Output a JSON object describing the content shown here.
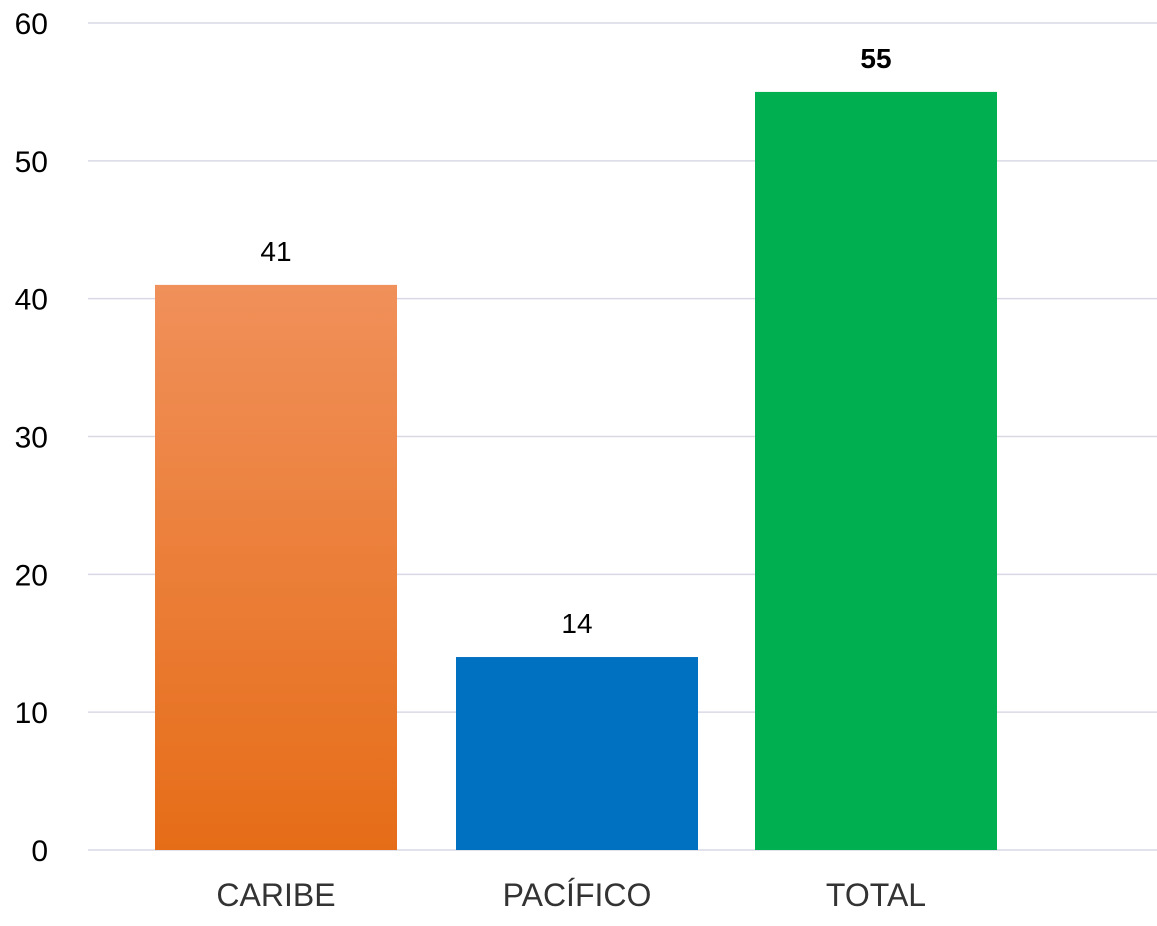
{
  "chart_data": {
    "type": "bar",
    "categories": [
      "CARIBE",
      "PACÍFICO",
      "TOTAL"
    ],
    "values": [
      41,
      14,
      55
    ],
    "data_labels": [
      "41",
      "14",
      "55"
    ],
    "data_label_bold": [
      false,
      false,
      true
    ],
    "colors": [
      "#ef7f2a",
      "#0070c0",
      "#00b050"
    ],
    "gradient_top": [
      "#f0905a",
      null,
      null
    ],
    "gradient_bottom": [
      "#e66d18",
      null,
      null
    ],
    "title": "",
    "xlabel": "",
    "ylabel": "",
    "ylim": [
      0,
      60
    ],
    "yticks": [
      "0",
      "10",
      "20",
      "30",
      "40",
      "50",
      "60"
    ],
    "grid": true,
    "legend": "none"
  }
}
